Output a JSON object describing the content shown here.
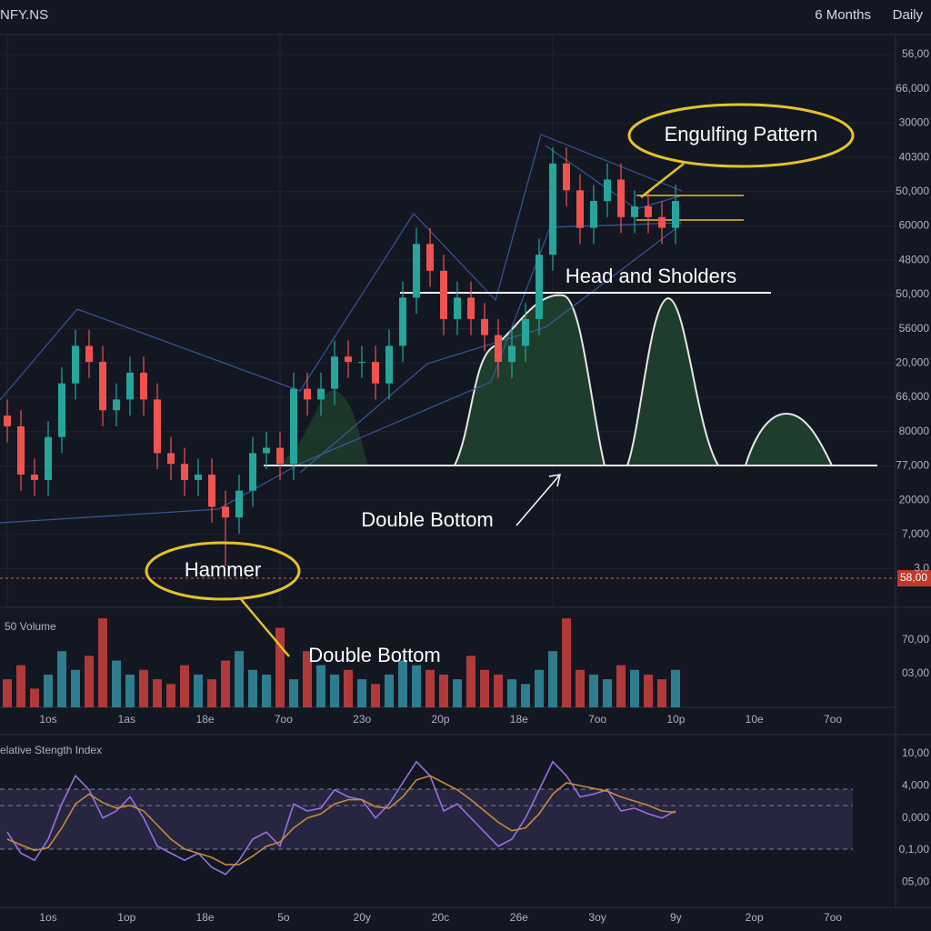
{
  "header": {
    "symbol": "NFY.NS",
    "range": "6 Months",
    "interval": "Daily"
  },
  "chart_data": [
    {
      "type": "candlestick",
      "open": [
        31,
        29,
        20,
        19,
        27,
        37,
        44,
        41,
        32,
        34,
        39,
        34,
        24,
        22,
        19,
        20,
        14,
        12,
        17,
        24,
        25,
        22,
        36,
        34,
        36,
        42,
        41,
        41,
        37,
        44,
        53,
        63,
        58,
        49,
        53,
        49,
        46,
        41,
        44,
        49,
        61,
        78,
        73,
        66,
        71,
        75,
        68,
        70,
        68,
        66
      ],
      "high": [
        34,
        32,
        23,
        30,
        40,
        47,
        47,
        44,
        37,
        42,
        42,
        37,
        27,
        25,
        23,
        23,
        17,
        20,
        27,
        28,
        28,
        39,
        39,
        39,
        45,
        45,
        44,
        44,
        47,
        56,
        66,
        66,
        61,
        56,
        56,
        52,
        49,
        47,
        52,
        64,
        81,
        81,
        76,
        74,
        78,
        78,
        73,
        73,
        71,
        74
      ],
      "low": [
        26,
        17,
        16,
        16,
        24,
        34,
        38,
        29,
        29,
        31,
        31,
        21,
        19,
        16,
        16,
        11,
        3,
        9,
        14,
        21,
        19,
        19,
        31,
        31,
        33,
        38,
        38,
        34,
        34,
        41,
        50,
        55,
        46,
        46,
        46,
        43,
        38,
        38,
        41,
        46,
        58,
        70,
        63,
        63,
        68,
        65,
        65,
        65,
        63,
        63
      ],
      "close": [
        29,
        20,
        19,
        27,
        37,
        44,
        41,
        32,
        34,
        39,
        34,
        24,
        22,
        19,
        20,
        14,
        12,
        17,
        24,
        25,
        22,
        36,
        34,
        36,
        42,
        41,
        41,
        37,
        44,
        53,
        63,
        58,
        49,
        53,
        49,
        46,
        41,
        44,
        49,
        61,
        78,
        73,
        66,
        71,
        75,
        68,
        70,
        68,
        66,
        71
      ],
      "up_color": "#26a69a",
      "down_color": "#ef5350",
      "ylim": [
        0,
        100
      ],
      "y_labels": [
        "56,00",
        "66,000",
        "30000",
        "40300",
        "50,000",
        "60000",
        "48000",
        "50,000",
        "56000",
        "20,000",
        "66,000",
        "80000",
        "77,000",
        "20000",
        "7,000",
        "3,0"
      ],
      "current_price_label": "58,00",
      "annotations": [
        "Engulfing Pattern",
        "Head and Sholders",
        "Double Bottom",
        "Hammer",
        "Double Bottom"
      ]
    },
    {
      "type": "bar",
      "title": "50 Volume",
      "values": [
        30,
        45,
        20,
        35,
        60,
        40,
        55,
        95,
        50,
        35,
        40,
        30,
        25,
        45,
        35,
        30,
        50,
        60,
        40,
        35,
        85,
        30,
        60,
        45,
        35,
        40,
        30,
        25,
        35,
        50,
        45,
        40,
        35,
        30,
        55,
        40,
        35,
        30,
        25,
        40,
        60,
        95,
        40,
        35,
        30,
        45,
        40,
        35,
        30,
        40
      ],
      "ylim": [
        0,
        100
      ],
      "y_labels": [
        "70,00",
        "03,00"
      ],
      "x_labels": [
        "1os",
        "1as",
        "18e",
        "7oo",
        "23o",
        "20p",
        "18e",
        "7oo",
        "10p",
        "10e",
        "7oo"
      ]
    },
    {
      "type": "line",
      "title": "elative Stength Index",
      "series": [
        {
          "color": "#9b6fe0",
          "values": [
            45,
            30,
            25,
            40,
            65,
            85,
            75,
            55,
            60,
            70,
            55,
            35,
            30,
            25,
            30,
            20,
            15,
            25,
            40,
            45,
            35,
            65,
            60,
            62,
            75,
            70,
            68,
            55,
            65,
            80,
            95,
            85,
            60,
            65,
            55,
            45,
            35,
            40,
            55,
            75,
            95,
            85,
            70,
            72,
            75,
            60,
            62,
            58,
            55,
            60
          ]
        },
        {
          "color": "#c98a3c",
          "values": [
            40,
            36,
            32,
            34,
            48,
            65,
            72,
            66,
            62,
            64,
            60,
            50,
            40,
            33,
            30,
            27,
            22,
            22,
            28,
            35,
            38,
            48,
            55,
            58,
            65,
            68,
            68,
            63,
            62,
            70,
            82,
            85,
            80,
            75,
            68,
            60,
            52,
            46,
            48,
            58,
            72,
            80,
            78,
            76,
            74,
            70,
            67,
            64,
            60,
            59
          ]
        }
      ],
      "ylim": [
        0,
        100
      ],
      "y_labels": [
        "10,00",
        "4,000",
        "0,000",
        "0,1,00",
        "05,00"
      ],
      "x_labels": [
        "1os",
        "1op",
        "18e",
        "5o",
        "20y",
        "20c",
        "26e",
        "3oy",
        "9y",
        "2op",
        "7oo"
      ]
    }
  ]
}
